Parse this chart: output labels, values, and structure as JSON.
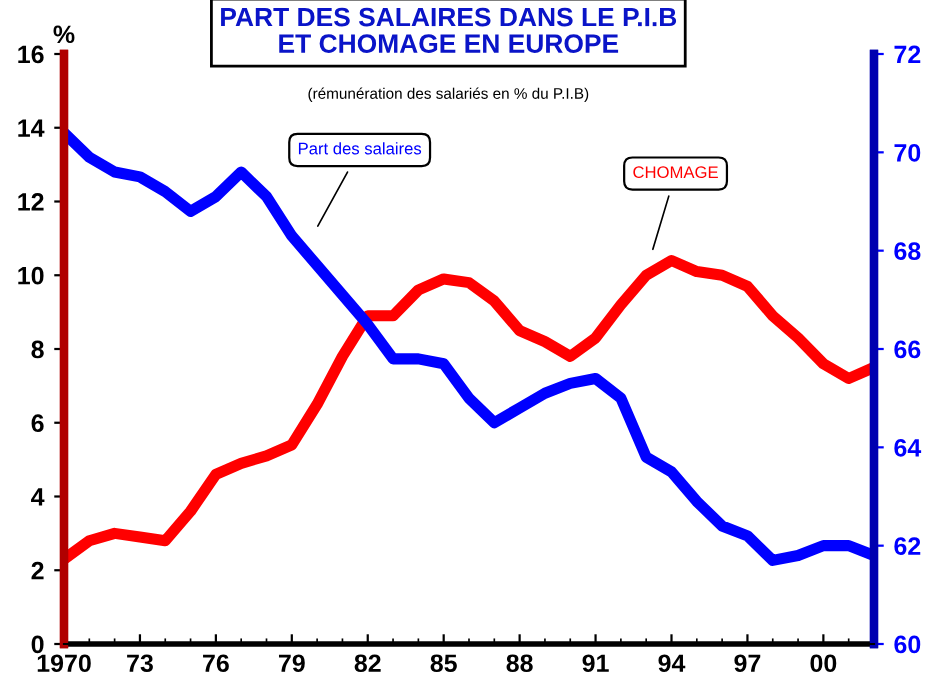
{
  "chart_data": {
    "type": "line",
    "title": "PART DES SALAIRES DANS LE P.I.B\nET CHOMAGE EN EUROPE",
    "subtitle": "(rémunération des salariés en % du P.I.B)",
    "ylabel": "%",
    "x": [
      1970,
      1971,
      1972,
      1973,
      1974,
      1975,
      1976,
      1977,
      1978,
      1979,
      1980,
      1981,
      1982,
      1983,
      1984,
      1985,
      1986,
      1987,
      1988,
      1989,
      1990,
      1991,
      1992,
      1993,
      1994,
      1995,
      1996,
      1997,
      1998,
      1999,
      2000,
      2001,
      2002
    ],
    "series": [
      {
        "color": "#ff0000",
        "values": [
          2.3,
          2.8,
          3.0,
          2.9,
          2.8,
          3.6,
          4.6,
          4.9,
          5.1,
          5.4,
          6.5,
          7.8,
          8.9,
          8.9,
          9.6,
          9.9,
          9.8,
          9.3,
          8.5,
          8.2,
          7.8,
          8.3,
          9.2,
          10.0,
          10.4,
          10.1,
          10.0,
          9.7,
          8.9,
          8.3,
          7.6,
          7.2,
          7.5
        ]
      },
      {
        "color": "#0000ff",
        "axis": "y2",
        "values": [
          70.4,
          69.9,
          69.6,
          69.5,
          69.2,
          68.8,
          69.1,
          69.6,
          69.1,
          68.3,
          67.7,
          67.1,
          66.5,
          65.8,
          65.8,
          65.7,
          65.0,
          64.5,
          64.8,
          65.1,
          65.3,
          65.4,
          65.0,
          63.8,
          63.5,
          62.9,
          62.4,
          62.2,
          61.7,
          61.8,
          62.0,
          62.0,
          61.8
        ]
      }
    ],
    "xlim": [
      1970,
      2002
    ],
    "xticks": [
      1970,
      {
        "value": 1973,
        "label": "73"
      },
      {
        "value": 1976,
        "label": "76"
      },
      {
        "value": 1979,
        "label": "79"
      },
      {
        "value": 1982,
        "label": "82"
      },
      {
        "value": 1985,
        "label": "85"
      },
      {
        "value": 1988,
        "label": "88"
      },
      {
        "value": 1991,
        "label": "91"
      },
      {
        "value": 1994,
        "label": "94"
      },
      {
        "value": 1997,
        "label": "97"
      },
      {
        "value": 2000,
        "label": "00"
      }
    ],
    "ylim": [
      0,
      16
    ],
    "yticks": [
      0,
      2,
      4,
      6,
      8,
      10,
      12,
      14,
      16
    ],
    "y2lim": [
      60,
      72
    ],
    "y2ticks": [
      60,
      62,
      64,
      66,
      68,
      70,
      72
    ],
    "annotations": [
      "CHOMAGE",
      "Part des salaires"
    ],
    "grid": false,
    "legend": false,
    "marker": "none",
    "line_style": "solid"
  }
}
